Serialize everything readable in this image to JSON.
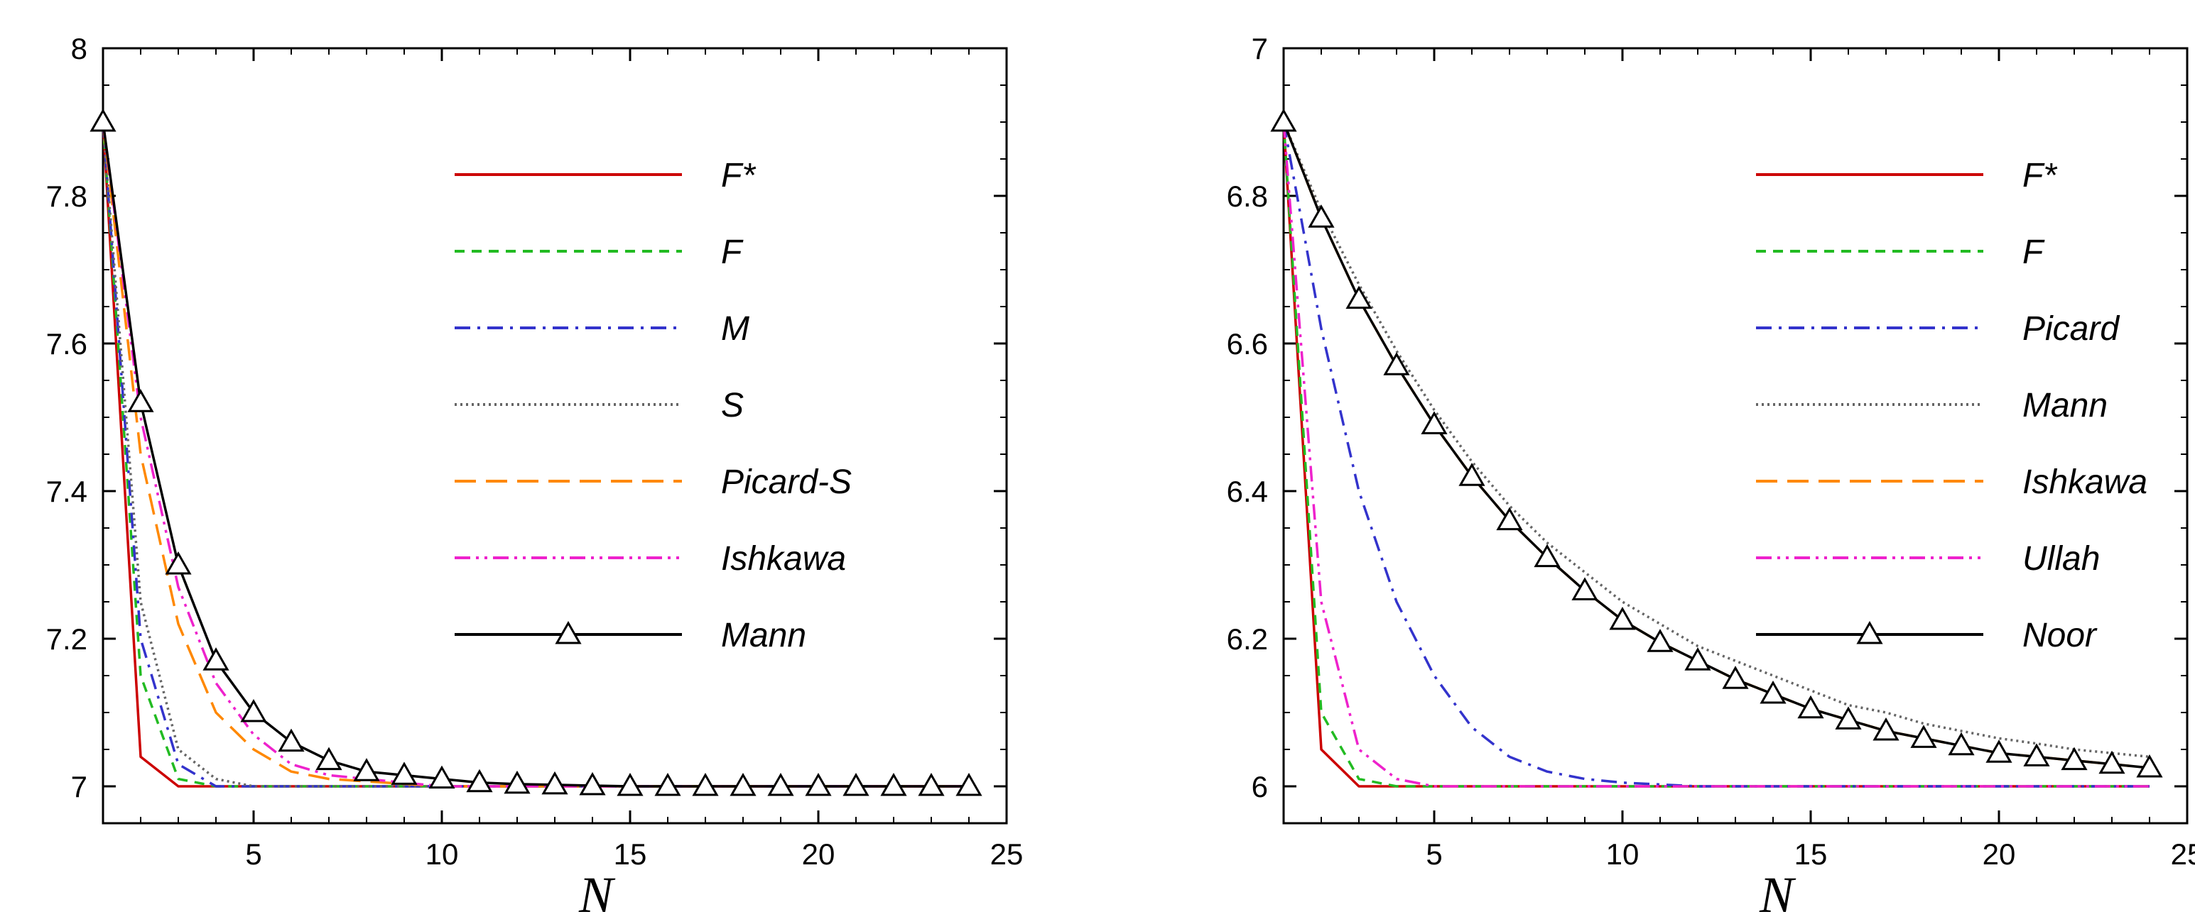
{
  "chart_data": [
    {
      "type": "line",
      "xlabel": "N",
      "ylabel": "",
      "xlim": [
        1,
        25
      ],
      "ylim": [
        6.95,
        8.0
      ],
      "xticks": [
        "5",
        "10",
        "15",
        "20",
        "25"
      ],
      "yticks": [
        "7",
        "7.2",
        "7.4",
        "7.6",
        "7.8",
        "8"
      ],
      "legend_position": "top-right",
      "series": [
        {
          "name": "F*",
          "color": "#cc0000",
          "dash": "",
          "marker": "",
          "x": [
            1,
            2,
            3,
            4,
            5,
            10,
            15,
            20,
            24
          ],
          "y": [
            7.9,
            7.04,
            7.0,
            7.0,
            7.0,
            7.0,
            7.0,
            7.0,
            7.0
          ]
        },
        {
          "name": "F",
          "color": "#22bb22",
          "dash": "14,10",
          "marker": "",
          "x": [
            1,
            2,
            3,
            4,
            5,
            10,
            24
          ],
          "y": [
            7.9,
            7.15,
            7.01,
            7.0,
            7.0,
            7.0,
            7.0
          ]
        },
        {
          "name": "M",
          "color": "#3333cc",
          "dash": "22,10,4,10",
          "marker": "",
          "x": [
            1,
            2,
            3,
            4,
            5,
            10,
            24
          ],
          "y": [
            7.9,
            7.2,
            7.03,
            7.0,
            7.0,
            7.0,
            7.0
          ]
        },
        {
          "name": "S",
          "color": "#666666",
          "dash": "3,5",
          "marker": "",
          "x": [
            1,
            2,
            3,
            4,
            5,
            10,
            24
          ],
          "y": [
            7.9,
            7.25,
            7.05,
            7.01,
            7.0,
            7.0,
            7.0
          ]
        },
        {
          "name": "Picard-S",
          "color": "#ff8800",
          "dash": "30,14",
          "marker": "",
          "x": [
            1,
            2,
            3,
            4,
            5,
            6,
            7,
            10,
            24
          ],
          "y": [
            7.9,
            7.45,
            7.22,
            7.1,
            7.05,
            7.02,
            7.01,
            7.0,
            7.0
          ]
        },
        {
          "name": "Ishkawa",
          "color": "#ee22cc",
          "dash": "22,8,4,8,4,8",
          "marker": "",
          "x": [
            1,
            2,
            3,
            4,
            5,
            6,
            7,
            8,
            10,
            24
          ],
          "y": [
            7.9,
            7.5,
            7.27,
            7.14,
            7.07,
            7.03,
            7.015,
            7.01,
            7.0,
            7.0
          ]
        },
        {
          "name": "Mann",
          "color": "#000000",
          "dash": "",
          "marker": "triangle",
          "x": [
            1,
            2,
            3,
            4,
            5,
            6,
            7,
            8,
            9,
            10,
            11,
            12,
            13,
            14,
            15,
            16,
            17,
            18,
            19,
            20,
            21,
            22,
            23,
            24
          ],
          "y": [
            7.9,
            7.52,
            7.3,
            7.17,
            7.1,
            7.06,
            7.035,
            7.02,
            7.015,
            7.01,
            7.005,
            7.003,
            7.002,
            7.001,
            7.0,
            7.0,
            7.0,
            7.0,
            7.0,
            7.0,
            7.0,
            7.0,
            7.0,
            7.0
          ]
        }
      ]
    },
    {
      "type": "line",
      "xlabel": "N",
      "ylabel": "",
      "xlim": [
        1,
        25
      ],
      "ylim": [
        5.95,
        7.0
      ],
      "xticks": [
        "5",
        "10",
        "15",
        "20",
        "25"
      ],
      "yticks": [
        "6",
        "6.2",
        "6.4",
        "6.6",
        "6.8",
        "7"
      ],
      "legend_position": "top-right",
      "series": [
        {
          "name": "F*",
          "color": "#cc0000",
          "dash": "",
          "marker": "",
          "x": [
            1,
            2,
            3,
            4,
            5,
            10,
            15,
            20,
            24
          ],
          "y": [
            6.9,
            6.05,
            6.0,
            6.0,
            6.0,
            6.0,
            6.0,
            6.0,
            6.0
          ]
        },
        {
          "name": "F",
          "color": "#22bb22",
          "dash": "14,10",
          "marker": "",
          "x": [
            1,
            2,
            3,
            4,
            5,
            10,
            24
          ],
          "y": [
            6.9,
            6.1,
            6.01,
            6.0,
            6.0,
            6.0,
            6.0
          ]
        },
        {
          "name": "Picard",
          "color": "#3333cc",
          "dash": "22,10,4,10",
          "marker": "",
          "x": [
            1,
            2,
            3,
            4,
            5,
            6,
            7,
            8,
            9,
            10,
            12,
            24
          ],
          "y": [
            6.9,
            6.62,
            6.4,
            6.25,
            6.15,
            6.08,
            6.04,
            6.02,
            6.01,
            6.005,
            6.0,
            6.0
          ]
        },
        {
          "name": "Mann",
          "color": "#666666",
          "dash": "3,5",
          "marker": "",
          "x": [
            1,
            2,
            3,
            4,
            5,
            6,
            7,
            8,
            9,
            10,
            11,
            12,
            13,
            14,
            15,
            16,
            17,
            18,
            19,
            20,
            21,
            22,
            23,
            24
          ],
          "y": [
            6.9,
            6.78,
            6.68,
            6.59,
            6.51,
            6.44,
            6.38,
            6.33,
            6.29,
            6.25,
            6.22,
            6.19,
            6.17,
            6.15,
            6.13,
            6.11,
            6.1,
            6.085,
            6.075,
            6.065,
            6.058,
            6.05,
            6.045,
            6.04
          ]
        },
        {
          "name": "Ishkawa",
          "color": "#ff8800",
          "dash": "30,14",
          "marker": "",
          "x": [
            1,
            2,
            3,
            4,
            5,
            6,
            7,
            8,
            9,
            10,
            11,
            12,
            13,
            14,
            15,
            16,
            17,
            18,
            19,
            20,
            21,
            22,
            23,
            24
          ],
          "y": [
            6.9,
            6.77,
            6.66,
            6.57,
            6.49,
            6.42,
            6.36,
            6.31,
            6.265,
            6.225,
            6.195,
            6.17,
            6.145,
            6.125,
            6.105,
            6.09,
            6.075,
            6.065,
            6.055,
            6.045,
            6.04,
            6.035,
            6.03,
            6.025
          ]
        },
        {
          "name": "Ullah",
          "color": "#ee22cc",
          "dash": "22,8,4,8,4,8",
          "marker": "",
          "x": [
            1,
            2,
            3,
            4,
            5,
            6,
            10,
            24
          ],
          "y": [
            6.9,
            6.25,
            6.05,
            6.01,
            6.0,
            6.0,
            6.0,
            6.0
          ]
        },
        {
          "name": "Noor",
          "color": "#000000",
          "dash": "",
          "marker": "triangle",
          "x": [
            1,
            2,
            3,
            4,
            5,
            6,
            7,
            8,
            9,
            10,
            11,
            12,
            13,
            14,
            15,
            16,
            17,
            18,
            19,
            20,
            21,
            22,
            23,
            24
          ],
          "y": [
            6.9,
            6.77,
            6.66,
            6.57,
            6.49,
            6.42,
            6.36,
            6.31,
            6.265,
            6.225,
            6.195,
            6.17,
            6.145,
            6.125,
            6.105,
            6.09,
            6.075,
            6.065,
            6.055,
            6.045,
            6.04,
            6.035,
            6.03,
            6.025
          ]
        }
      ]
    }
  ]
}
